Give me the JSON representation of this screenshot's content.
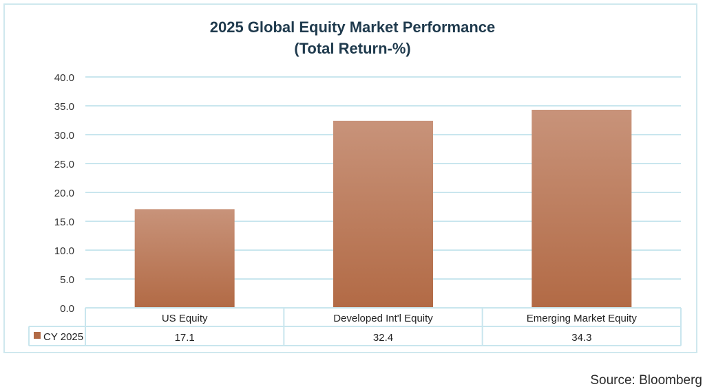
{
  "chart_data": {
    "type": "bar",
    "title": "2025  Global Equity Market Performance",
    "subtitle": "(Total Return-%)",
    "categories": [
      "US Equity",
      "Developed Int'l Equity",
      "Emerging Market Equity"
    ],
    "series": [
      {
        "name": "CY 2025",
        "values": [
          17.1,
          32.4,
          34.3
        ],
        "value_labels": [
          "17.1",
          "32.4",
          "34.3"
        ]
      }
    ],
    "ylim": [
      0,
      40
    ],
    "yticks": [
      "0.0",
      "5.0",
      "10.0",
      "15.0",
      "20.0",
      "25.0",
      "30.0",
      "35.0",
      "40.0"
    ],
    "grid": true,
    "legend_placement": "data-table",
    "colors": {
      "bar_top": "#c8937a",
      "bar_bottom": "#b26a45",
      "grid": "#c9e6ee"
    }
  },
  "source": "Source: Bloomberg"
}
